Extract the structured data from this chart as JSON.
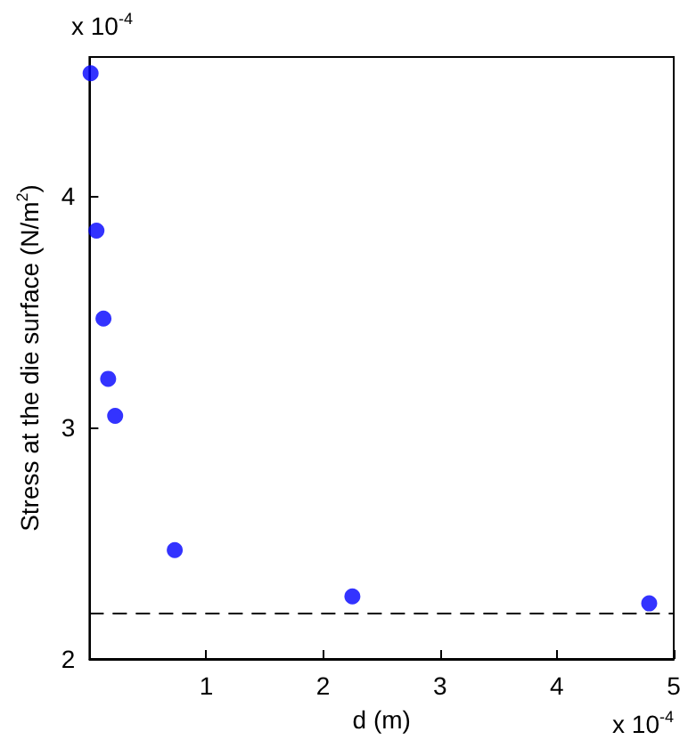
{
  "chart_data": {
    "type": "scatter",
    "xlabel": "d (m)",
    "ylabel": "Stress at the die surface (N/m$^{2}$)",
    "x": [
      0.01,
      0.06,
      0.12,
      0.16,
      0.22,
      0.73,
      2.25,
      4.79
    ],
    "series": [
      {
        "color": "#0000ff",
        "values": [
          4.53,
          3.85,
          3.47,
          3.21,
          3.05,
          2.47,
          2.27,
          2.24
        ]
      }
    ],
    "xlim": [
      0,
      5
    ],
    "xticks": [
      1,
      2,
      3,
      4,
      5
    ],
    "ylim": [
      2,
      4.6
    ],
    "yticks": [
      2,
      3,
      4
    ],
    "marker": "circle",
    "ref_lines": [
      {
        "axis": "y",
        "value": 2.2,
        "color": "#000000",
        "line_style": "dashed"
      }
    ],
    "annotations": [
      "x 10$^{-4}$",
      "x 10$^{-4}$"
    ]
  }
}
